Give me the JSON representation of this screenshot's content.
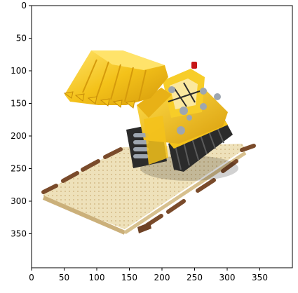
{
  "image": {
    "subject": "yellow toy bulldozer on a baseplate",
    "colors": {
      "yellow": "#f4c21a",
      "yellow_dark": "#d59a0b",
      "yellow_light": "#ffe36a",
      "track": "#2b2b2b",
      "plate": "#e6cf9e",
      "plate_shadow": "#cbb07a",
      "plate_border": "#7a4b2b",
      "grey": "#9ea6b0",
      "red": "#c61616"
    }
  },
  "axes": {
    "x_ticks": [
      "0",
      "50",
      "100",
      "150",
      "200",
      "250",
      "300",
      "350"
    ],
    "y_ticks": [
      "0",
      "50",
      "100",
      "150",
      "200",
      "250",
      "300",
      "350"
    ]
  }
}
